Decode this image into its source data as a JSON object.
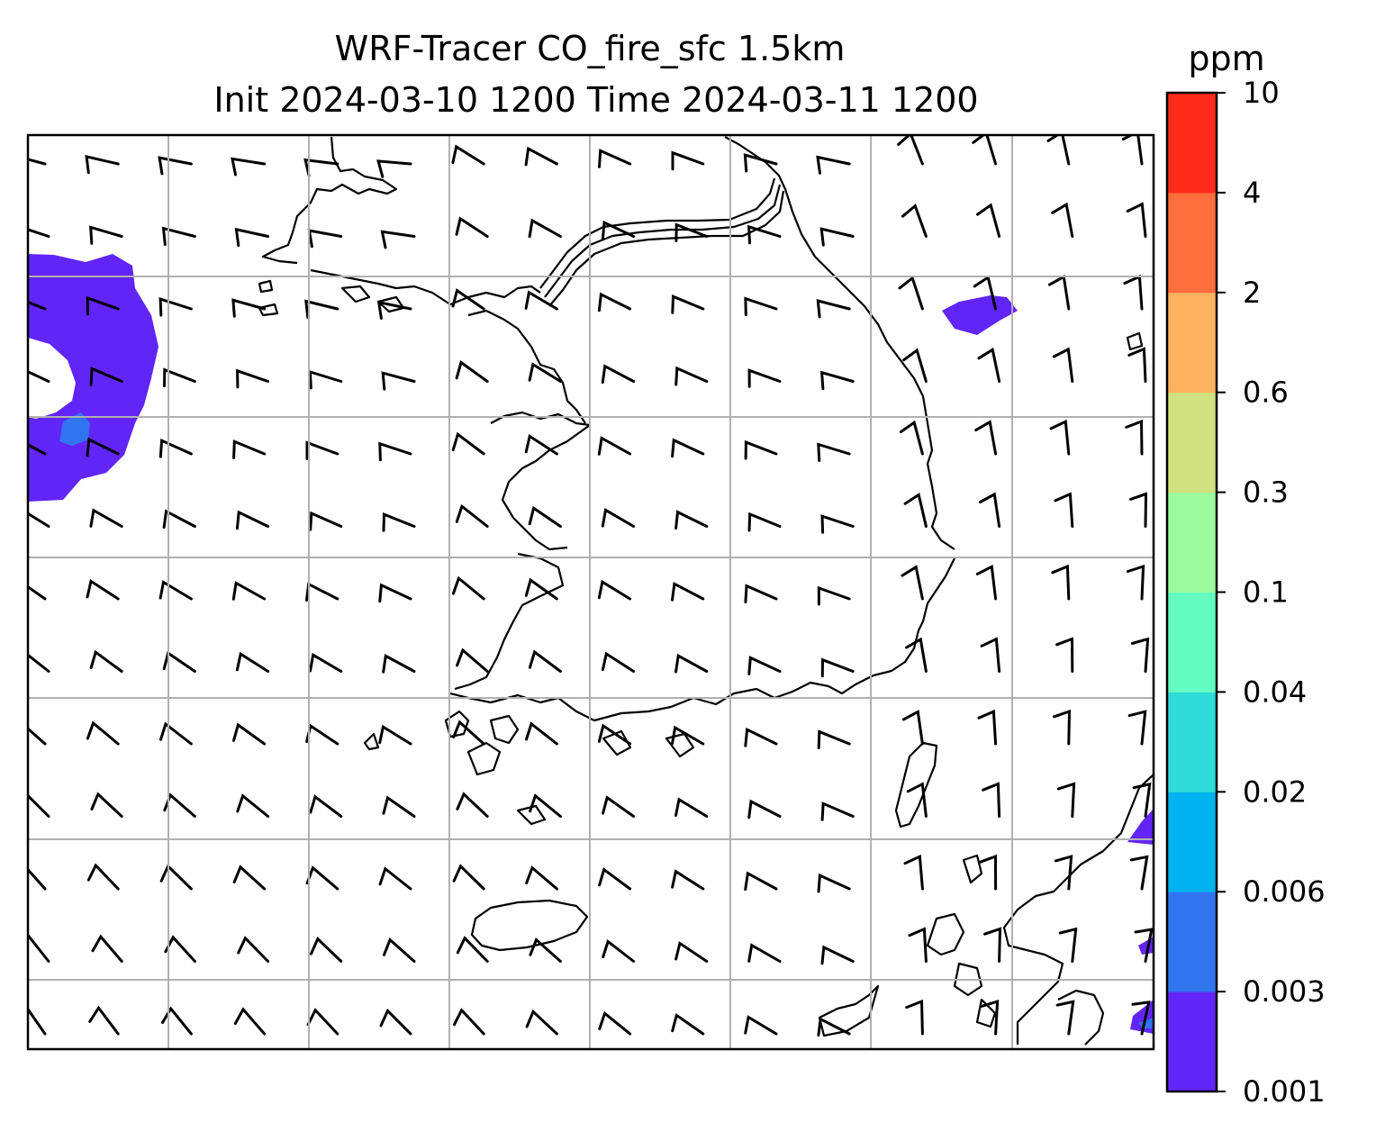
{
  "title": {
    "line1": "WRF-Tracer CO_fire_sfc 1.5km",
    "line2": "Init 2024-03-10 1200 Time 2024-03-11 1200"
  },
  "colorbar": {
    "unit": "ppm",
    "ticks": [
      "0.001",
      "0.003",
      "0.006",
      "0.02",
      "0.04",
      "0.1",
      "0.3",
      "0.6",
      "2",
      "4",
      "10"
    ],
    "colors": [
      "#6225f7",
      "#3174f0",
      "#00b2ee",
      "#2fdbd8",
      "#64fbc1",
      "#9bfb9e",
      "#d1e180",
      "#ffb260",
      "#ff6e3c",
      "#ff2a1a"
    ]
  },
  "map": {
    "gridlines": true,
    "coastline_color": "#000000",
    "wind_barbs": true
  }
}
